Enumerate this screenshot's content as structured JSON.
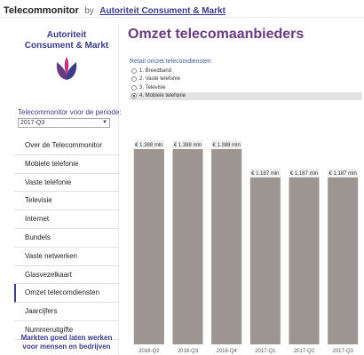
{
  "header": {
    "app_name": "Telecommonitor",
    "by": "by",
    "org_link": "Autoriteit Consument & Markt"
  },
  "sidebar": {
    "logo_line1": "Autoriteit",
    "logo_line2": "Consument & Markt",
    "period_label": "Telecommonitor voor de periode:",
    "period_value": "2017-Q3",
    "items": [
      {
        "label": "Over de Telecommonitor"
      },
      {
        "label": "Mobiele telefonie"
      },
      {
        "label": "Vaste telefonie"
      },
      {
        "label": "Televisie"
      },
      {
        "label": "Internet"
      },
      {
        "label": "Bundels"
      },
      {
        "label": "Vaste netwerken"
      },
      {
        "label": "Glasvezelkaart"
      },
      {
        "label": "Omzet telecomdiensten"
      },
      {
        "label": "Jaarcijfers"
      },
      {
        "label": "Nummeruitgifte"
      }
    ],
    "active_index": 8,
    "tagline_line1": "Markten goed laten werken",
    "tagline_line2": "voor mensen en bedrijven"
  },
  "main": {
    "title": "Omzet telecomaanbieders",
    "panel_title": "Retail omzet telecomdiensten",
    "options": [
      {
        "label": "1. Breedband",
        "selected": false
      },
      {
        "label": "2. Vaste telefonie",
        "selected": false
      },
      {
        "label": "3. Televisie",
        "selected": false
      },
      {
        "label": "4. Mobiele telefonie",
        "selected": true
      }
    ]
  },
  "colors": {
    "brand": "#3b3b8e",
    "title": "#6a3a82",
    "bar": "#9c9591",
    "label_bg": "#f0f0f0"
  },
  "chart_data": {
    "type": "bar",
    "categories": [
      "2016-Q2",
      "2016-Q3",
      "2016-Q4",
      "2017-Q1",
      "2017-Q2",
      "2017-Q3"
    ],
    "values": [
      1388,
      1388,
      1388,
      1187,
      1187,
      1187
    ],
    "data_labels": [
      "€ 1.388 mln",
      "€ 1.388 mln",
      "€ 1.388 mln",
      "€ 1.187 mln",
      "€ 1.187 mln",
      "€ 1.187 mln"
    ],
    "ylim": [
      0,
      1388
    ]
  }
}
